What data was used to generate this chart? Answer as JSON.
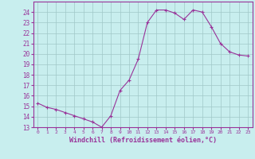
{
  "x": [
    0,
    1,
    2,
    3,
    4,
    5,
    6,
    7,
    8,
    9,
    10,
    11,
    12,
    13,
    14,
    15,
    16,
    17,
    18,
    19,
    20,
    21,
    22,
    23
  ],
  "y": [
    15.3,
    14.9,
    14.7,
    14.4,
    14.1,
    13.8,
    13.5,
    13.0,
    14.1,
    16.5,
    17.5,
    19.5,
    23.0,
    24.2,
    24.2,
    23.9,
    23.3,
    24.2,
    24.0,
    22.6,
    21.0,
    20.2,
    19.9,
    19.8
  ],
  "line_color": "#993399",
  "marker": "P",
  "marker_size": 2.5,
  "bg_color": "#c8eeee",
  "grid_color": "#a0c8c8",
  "xlabel": "Windchill (Refroidissement éolien,°C)",
  "xlabel_color": "#993399",
  "tick_color": "#993399",
  "ylim": [
    13,
    25
  ],
  "yticks": [
    13,
    14,
    15,
    16,
    17,
    18,
    19,
    20,
    21,
    22,
    23,
    24
  ],
  "xlim": [
    -0.5,
    23.5
  ],
  "xticks": [
    0,
    1,
    2,
    3,
    4,
    5,
    6,
    7,
    8,
    9,
    10,
    11,
    12,
    13,
    14,
    15,
    16,
    17,
    18,
    19,
    20,
    21,
    22,
    23
  ],
  "xtick_labels": [
    "0",
    "1",
    "2",
    "3",
    "4",
    "5",
    "6",
    "7",
    "8",
    "9",
    "10",
    "11",
    "12",
    "13",
    "14",
    "15",
    "16",
    "17",
    "18",
    "19",
    "20",
    "21",
    "22",
    "23"
  ]
}
